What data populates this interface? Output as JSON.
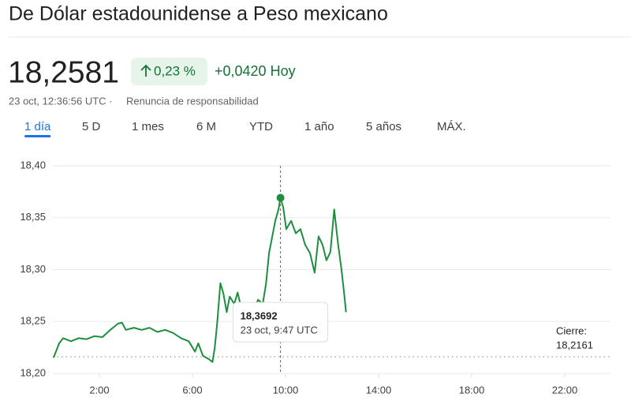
{
  "header": {
    "title": "De Dólar estadounidense a Peso mexicano",
    "price": "18,2581",
    "change_percent": "0,23 %",
    "change_abs": "+0,0420 Hoy",
    "timestamp": "23 oct, 12:36:56 UTC ·",
    "disclaimer": "Renuncia de responsabilidad"
  },
  "tabs": [
    "1 día",
    "5 D",
    "1 mes",
    "6 M",
    "YTD",
    "1 año",
    "5 años",
    "MÁX."
  ],
  "active_tab": 0,
  "chart_data": {
    "type": "line",
    "color": "#1e8e3e",
    "grid": true,
    "x": [
      0.03,
      0.27,
      0.44,
      0.78,
      1.11,
      1.45,
      1.79,
      2.13,
      2.47,
      2.8,
      2.97,
      3.14,
      3.48,
      3.82,
      4.15,
      4.49,
      4.83,
      5.17,
      5.51,
      5.84,
      6.11,
      6.25,
      6.45,
      6.69,
      6.86,
      6.96,
      7.06,
      7.2,
      7.33,
      7.47,
      7.6,
      7.8,
      7.94,
      8.14,
      8.38,
      8.61,
      8.82,
      9.02,
      9.16,
      9.29,
      9.43,
      9.56,
      9.7,
      9.783,
      9.9,
      10.03,
      10.24,
      10.44,
      10.64,
      10.84,
      11.05,
      11.25,
      11.42,
      11.59,
      11.76,
      11.93,
      12.09,
      12.26,
      12.4,
      12.53,
      12.6
    ],
    "values": [
      18.2152,
      18.229,
      18.234,
      18.231,
      18.234,
      18.233,
      18.236,
      18.235,
      18.242,
      18.248,
      18.249,
      18.242,
      18.244,
      18.242,
      18.244,
      18.24,
      18.242,
      18.239,
      18.234,
      18.231,
      18.221,
      18.229,
      18.217,
      18.214,
      18.211,
      18.225,
      18.248,
      18.287,
      18.277,
      18.259,
      18.274,
      18.267,
      18.278,
      18.259,
      18.262,
      18.259,
      18.271,
      18.267,
      18.286,
      18.316,
      18.332,
      18.347,
      18.358,
      18.3692,
      18.36,
      18.339,
      18.347,
      18.335,
      18.339,
      18.324,
      18.316,
      18.297,
      18.332,
      18.324,
      18.309,
      18.317,
      18.358,
      18.324,
      18.301,
      18.275,
      18.259
    ],
    "xlim": [
      0,
      24
    ],
    "xticks": [
      {
        "value": 2,
        "label": "2:00"
      },
      {
        "value": 6,
        "label": "6:00"
      },
      {
        "value": 10,
        "label": "10:00"
      },
      {
        "value": 14,
        "label": "14:00"
      },
      {
        "value": 18,
        "label": "18:00"
      },
      {
        "value": 22,
        "label": "22:00"
      }
    ],
    "ylim": [
      18.2,
      18.4
    ],
    "yticks": [
      {
        "value": 18.2,
        "label": "18,20"
      },
      {
        "value": 18.25,
        "label": "18,25"
      },
      {
        "value": 18.3,
        "label": "18,30"
      },
      {
        "value": 18.35,
        "label": "18,35"
      },
      {
        "value": 18.4,
        "label": "18,40"
      }
    ],
    "previous_close": {
      "title": "Cierre:",
      "value": 18.2161,
      "label": "18,2161"
    },
    "tooltip": {
      "x": 9.783,
      "value": 18.3692,
      "label": "18,3692",
      "time": "23 oct, 9:47 UTC"
    }
  }
}
